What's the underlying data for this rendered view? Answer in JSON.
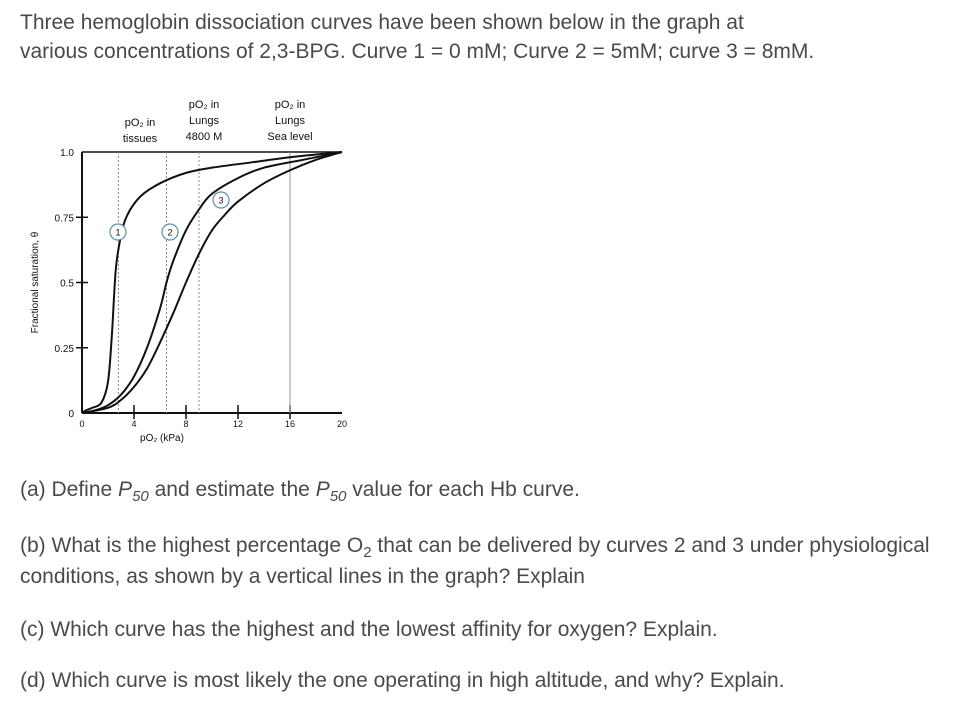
{
  "intro_line1": "Three hemoglobin dissociation curves have been shown below in the graph at",
  "intro_line2": "various concentrations of 2,3-BPG. Curve 1 = 0 mM; Curve 2 = 5mM; curve 3 = 8mM.",
  "questions": {
    "a": {
      "pre": "(a) Define ",
      "p": "P",
      "sub": "50",
      "mid": " and estimate the ",
      "p2": "P",
      "sub2": "50",
      "post": " value for each Hb curve."
    },
    "b": {
      "pre": "(b) What is the highest percentage O",
      "sub": "2",
      "post": " that can be delivered by curves 2 and 3 under physiological conditions, as shown by a vertical lines in the graph? Explain"
    },
    "c": {
      "text": "(c) Which curve has the highest and the lowest affinity for oxygen? Explain."
    },
    "d": {
      "text": "(d) Which curve is most likely the one operating in high altitude, and why? Explain."
    }
  },
  "chart_data": {
    "type": "line",
    "xlabel": "pO₂ (kPa)",
    "ylabel": "Fractional saturation, θ",
    "xlim": [
      0,
      20
    ],
    "ylim": [
      0,
      1.0
    ],
    "x_ticks": [
      "0",
      "4",
      "8",
      "12",
      "16",
      "20"
    ],
    "y_ticks": [
      "0",
      "0.25",
      "0.5",
      "0.75",
      "1.0"
    ],
    "grid": false,
    "series": [
      {
        "name": "1",
        "x": [
          0,
          0.3,
          0.8,
          1.5,
          2,
          2.3,
          2.6,
          3,
          3.5,
          4.5,
          6,
          8,
          10,
          13,
          16,
          20
        ],
        "y": [
          0,
          0.01,
          0.02,
          0.04,
          0.12,
          0.3,
          0.55,
          0.68,
          0.76,
          0.83,
          0.88,
          0.92,
          0.94,
          0.96,
          0.98,
          1.0
        ]
      },
      {
        "name": "2",
        "x": [
          0,
          1,
          2,
          3,
          4,
          5,
          6,
          6.5,
          7,
          8,
          9,
          10,
          12,
          14,
          17,
          20
        ],
        "y": [
          0,
          0.01,
          0.03,
          0.07,
          0.14,
          0.25,
          0.4,
          0.5,
          0.58,
          0.7,
          0.78,
          0.84,
          0.9,
          0.94,
          0.97,
          1.0
        ]
      },
      {
        "name": "3",
        "x": [
          0,
          2,
          3,
          4,
          5,
          6,
          7,
          8,
          9,
          10,
          11,
          12,
          14,
          16,
          18,
          20
        ],
        "y": [
          0,
          0.02,
          0.05,
          0.1,
          0.17,
          0.27,
          0.38,
          0.5,
          0.61,
          0.7,
          0.76,
          0.81,
          0.88,
          0.93,
          0.97,
          1.0
        ]
      }
    ],
    "annotations": [
      {
        "x": 2.8,
        "text_lines": [
          "pO₂ in",
          "tissues"
        ]
      },
      {
        "x": 6.5,
        "text_lines": [
          "pO₂ in",
          "Lungs",
          "4800 M"
        ]
      },
      {
        "x": 9,
        "text_lines": [
          "pO₂ in",
          "Lungs",
          "Sea level"
        ]
      }
    ],
    "vlines": [
      2.8,
      6.5,
      9,
      16
    ]
  }
}
